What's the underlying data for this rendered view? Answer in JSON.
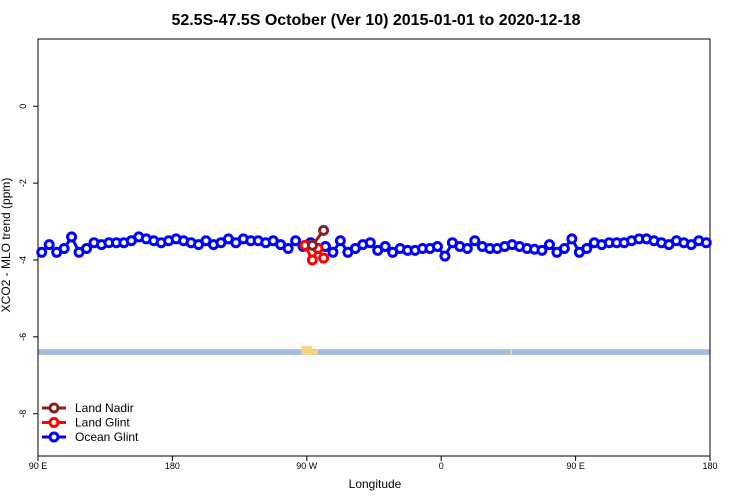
{
  "chart_data": {
    "type": "line",
    "title": "52.5S-47.5S October (Ver 10)   2015-01-01 to 2020-12-18",
    "xlabel": "Longitude",
    "ylabel": "XCO2 - MLO trend (ppm)",
    "xlim": [
      -180,
      180
    ],
    "ylim": [
      -9.1,
      1.75
    ],
    "x_ticks": [
      {
        "value": -180,
        "label": "90 E"
      },
      {
        "value": -108,
        "label": "180"
      },
      {
        "value": -36,
        "label": "90 W"
      },
      {
        "value": 36,
        "label": "0"
      },
      {
        "value": 108,
        "label": "90 E"
      },
      {
        "value": 180,
        "label": "180"
      }
    ],
    "y_ticks": [
      {
        "value": 0,
        "label": "0"
      },
      {
        "value": -2,
        "label": "-2"
      },
      {
        "value": -4,
        "label": "-4"
      },
      {
        "value": -6,
        "label": "-6"
      },
      {
        "value": -8,
        "label": "-8"
      }
    ],
    "grid": false,
    "legend": "bottom-left",
    "land_band": {
      "y_range": [
        -6.32,
        -6.47
      ],
      "ocean_color": "#a4bcdf",
      "land_color": "#f6d482",
      "land_segments": [
        [
          -39,
          -33
        ],
        [
          -33,
          -30
        ],
        [
          73,
          74
        ]
      ]
    },
    "series": [
      {
        "name": "Land Nadir",
        "color": "#8b2020",
        "x": [
          -33,
          -27
        ],
        "y": [
          -3.62,
          -3.23
        ]
      },
      {
        "name": "Land Glint",
        "color": "#ff0000",
        "x": [
          -37,
          -33,
          -30,
          -27
        ],
        "y": [
          -3.62,
          -4.0,
          -3.7,
          -3.95
        ]
      },
      {
        "name": "Ocean Glint",
        "color": "#0000ff",
        "x": [
          -178,
          -174,
          -170,
          -166,
          -162,
          -158,
          -154,
          -150,
          -146,
          -142,
          -138,
          -134,
          -130,
          -126,
          -122,
          -118,
          -114,
          -110,
          -106,
          -102,
          -98,
          -94,
          -90,
          -86,
          -82,
          -78,
          -74,
          -70,
          -66,
          -62,
          -58,
          -54,
          -50,
          -46,
          -42,
          -38,
          -34,
          -30,
          -26,
          -22,
          -18,
          -14,
          -10,
          -6,
          -2,
          2,
          6,
          10,
          14,
          18,
          22,
          26,
          30,
          34,
          38,
          42,
          46,
          50,
          54,
          58,
          62,
          66,
          70,
          74,
          78,
          82,
          86,
          90,
          94,
          98,
          102,
          106,
          110,
          114,
          118,
          122,
          126,
          130,
          134,
          138,
          142,
          146,
          150,
          154,
          158,
          162,
          166,
          170,
          174,
          178
        ],
        "y": [
          -3.8,
          -3.6,
          -3.8,
          -3.7,
          -3.4,
          -3.8,
          -3.7,
          -3.55,
          -3.6,
          -3.55,
          -3.55,
          -3.55,
          -3.5,
          -3.4,
          -3.45,
          -3.5,
          -3.55,
          -3.5,
          -3.45,
          -3.5,
          -3.55,
          -3.6,
          -3.5,
          -3.6,
          -3.55,
          -3.45,
          -3.55,
          -3.45,
          -3.5,
          -3.5,
          -3.55,
          -3.5,
          -3.6,
          -3.7,
          -3.5,
          -3.65,
          -3.55,
          -3.7,
          -3.65,
          -3.8,
          -3.5,
          -3.8,
          -3.7,
          -3.6,
          -3.55,
          -3.75,
          -3.65,
          -3.8,
          -3.7,
          -3.75,
          -3.75,
          -3.7,
          -3.7,
          -3.65,
          -3.9,
          -3.55,
          -3.65,
          -3.7,
          -3.5,
          -3.65,
          -3.7,
          -3.7,
          -3.65,
          -3.6,
          -3.65,
          -3.7,
          -3.72,
          -3.75,
          -3.6,
          -3.8,
          -3.7,
          -3.45,
          -3.8,
          -3.7,
          -3.55,
          -3.6,
          -3.55,
          -3.55,
          -3.55,
          -3.5,
          -3.45,
          -3.45,
          -3.5,
          -3.55,
          -3.6,
          -3.5,
          -3.55,
          -3.6,
          -3.5,
          -3.55
        ]
      }
    ]
  }
}
